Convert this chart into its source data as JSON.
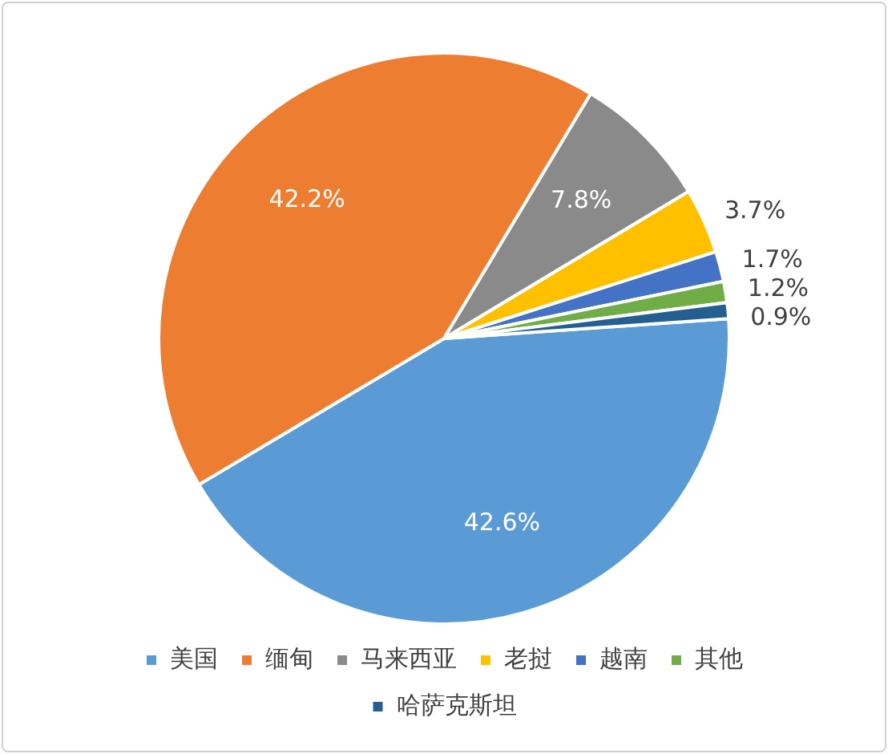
{
  "chart_data": {
    "type": "pie",
    "categories": [
      "美国",
      "缅甸",
      "马来西亚",
      "老挝",
      "越南",
      "其他",
      "哈萨克斯坦"
    ],
    "values": [
      42.6,
      42.2,
      7.8,
      3.7,
      1.7,
      1.2,
      0.9
    ],
    "value_labels": [
      "42.6%",
      "42.2%",
      "7.8%",
      "3.7%",
      "1.7%",
      "1.2%",
      "0.9%"
    ],
    "colors": [
      "#5b9bd5",
      "#ed7d31",
      "#8a8a8a",
      "#ffc000",
      "#4472c4",
      "#70ad47",
      "#255e91"
    ],
    "legend": "bottom"
  }
}
